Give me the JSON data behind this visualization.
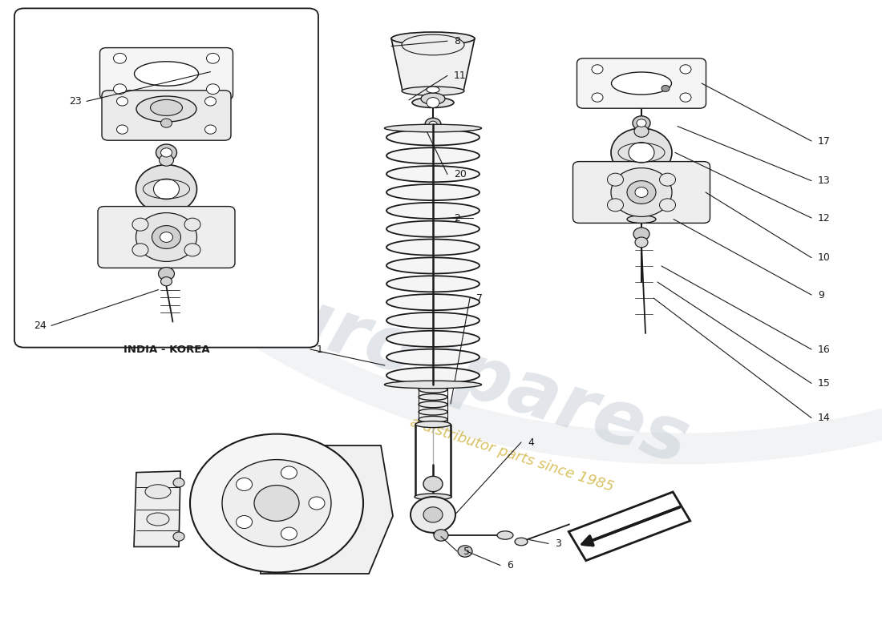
{
  "background_color": "#ffffff",
  "line_color": "#1a1a1a",
  "box_label": "INDIA - KOREA",
  "watermark_color": "#c5cdd5",
  "watermark_gold": "#c8a820",
  "label_fontsize": 9,
  "fig_w": 11.0,
  "fig_h": 8.0,
  "dpi": 100,
  "parts_right_labels": [
    {
      "num": "17",
      "nx": 1.02,
      "ny": 0.775
    },
    {
      "num": "13",
      "nx": 1.02,
      "ny": 0.715
    },
    {
      "num": "12",
      "nx": 1.02,
      "ny": 0.66
    },
    {
      "num": "10",
      "nx": 1.02,
      "ny": 0.595
    },
    {
      "num": "9",
      "nx": 1.02,
      "ny": 0.535
    },
    {
      "num": "16",
      "nx": 1.02,
      "ny": 0.455
    },
    {
      "num": "15",
      "nx": 1.02,
      "ny": 0.4
    },
    {
      "num": "14",
      "nx": 1.02,
      "ny": 0.345
    }
  ],
  "parts_left_labels": [
    {
      "num": "8",
      "nx": 0.53,
      "ny": 0.935
    },
    {
      "num": "11",
      "nx": 0.53,
      "ny": 0.878
    },
    {
      "num": "20",
      "nx": 0.53,
      "ny": 0.72
    },
    {
      "num": "2",
      "nx": 0.53,
      "ny": 0.655
    },
    {
      "num": "1",
      "nx": 0.39,
      "ny": 0.448
    },
    {
      "num": "7",
      "nx": 0.59,
      "ny": 0.53
    },
    {
      "num": "4",
      "nx": 0.655,
      "ny": 0.305
    },
    {
      "num": "5",
      "nx": 0.58,
      "ny": 0.135
    },
    {
      "num": "6",
      "nx": 0.63,
      "ny": 0.115
    },
    {
      "num": "3",
      "nx": 0.69,
      "ny": 0.15
    }
  ],
  "parts_box_labels": [
    {
      "num": "23",
      "nx": 0.105,
      "ny": 0.84
    },
    {
      "num": "24",
      "nx": 0.062,
      "ny": 0.488
    }
  ]
}
